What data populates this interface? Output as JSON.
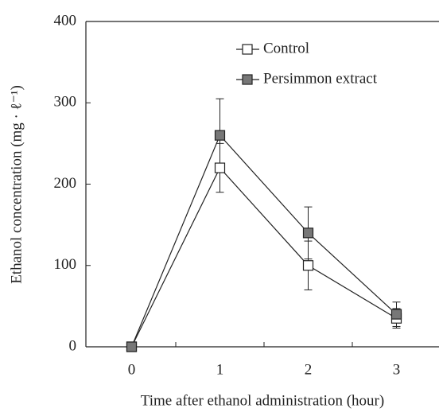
{
  "chart_data": {
    "type": "line",
    "xlabel": "Time after ethanol administration (hour)",
    "ylabel": "Ethanol concentration (mg · ℓ⁻¹)",
    "categories": [
      "0",
      "1",
      "2",
      "3"
    ],
    "series": [
      {
        "name": "Control",
        "color": "#ffffff",
        "values": [
          0,
          220,
          100,
          35
        ],
        "errors": [
          0,
          30,
          30,
          12
        ]
      },
      {
        "name": "Persimmon extract",
        "color": "#777777",
        "values": [
          0,
          260,
          140,
          40
        ],
        "errors": [
          0,
          45,
          32,
          15
        ]
      }
    ],
    "ylim": [
      0,
      400
    ],
    "yticks": [
      0,
      100,
      200,
      300,
      400
    ],
    "legend": "upper right"
  }
}
